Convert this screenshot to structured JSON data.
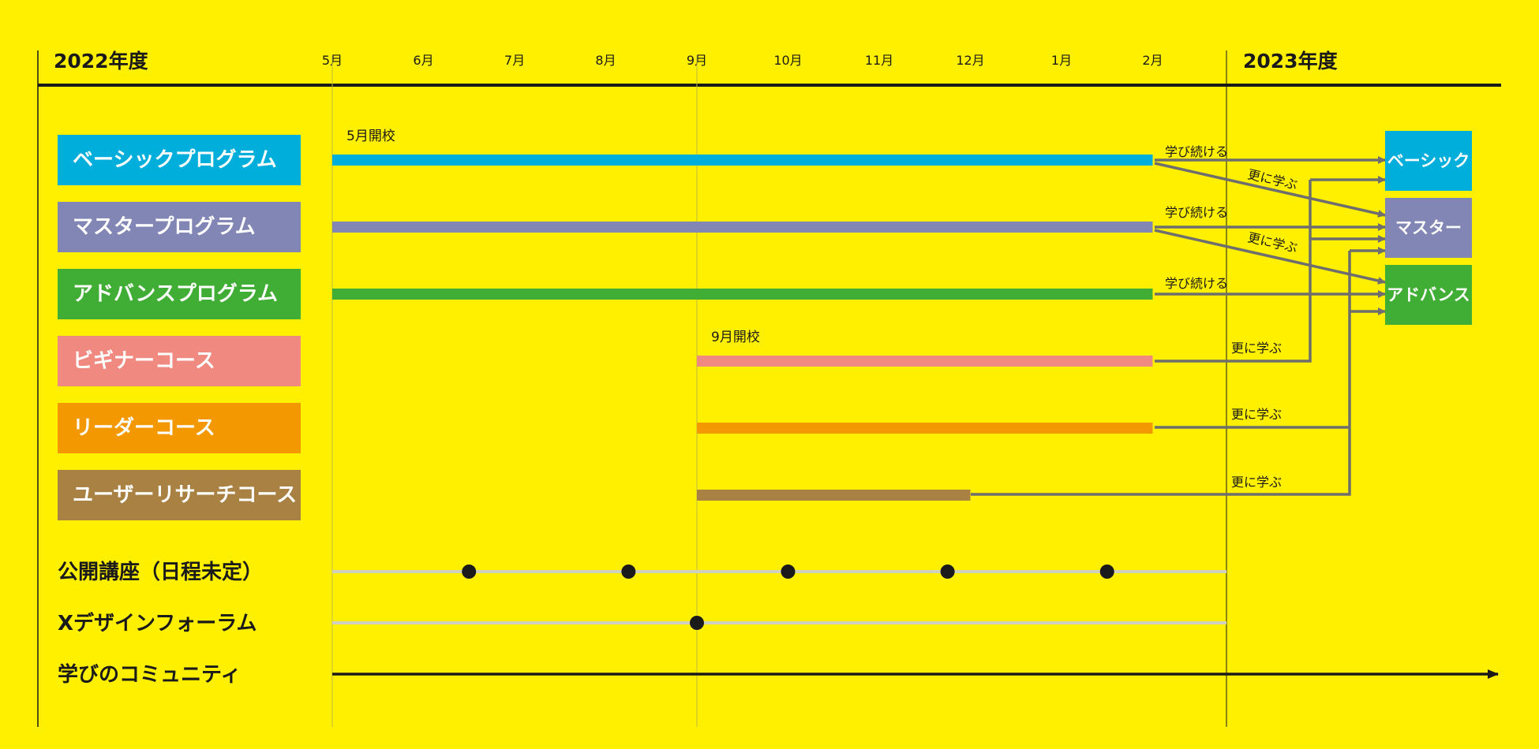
{
  "years": {
    "left": "2022年度",
    "right": "2023年度"
  },
  "months": [
    "5月",
    "6月",
    "7月",
    "8月",
    "9月",
    "10月",
    "11月",
    "12月",
    "1月",
    "2月"
  ],
  "colors": {
    "basic": "#00AEDB",
    "master": "#8286B4",
    "advance": "#40AE35",
    "beginner": "#F08A80",
    "leader": "#F39800",
    "research": "#A98143",
    "connector": "#6E6E6E",
    "event_line": "#D0D0C0"
  },
  "programs": [
    {
      "id": "basic",
      "label": "ベーシックプログラム",
      "color": "#00AEDB",
      "start": "5月",
      "end": "2月",
      "note": "5月開校"
    },
    {
      "id": "master",
      "label": "マスタープログラム",
      "color": "#8286B4",
      "start": "5月",
      "end": "2月",
      "note": ""
    },
    {
      "id": "advance",
      "label": "アドバンスプログラム",
      "color": "#40AE35",
      "start": "5月",
      "end": "2月",
      "note": ""
    },
    {
      "id": "beginner",
      "label": "ビギナーコース",
      "color": "#F08A80",
      "start": "9月",
      "end": "2月",
      "note": "9月開校"
    },
    {
      "id": "leader",
      "label": "リーダーコース",
      "color": "#F39800",
      "start": "9月",
      "end": "2月",
      "note": ""
    },
    {
      "id": "research",
      "label": "ユーザーリサーチコース",
      "color": "#A98143",
      "start": "9月",
      "end": "12月",
      "note": ""
    }
  ],
  "destinations": [
    {
      "id": "basic",
      "label": "ベーシック",
      "color": "#00AEDB"
    },
    {
      "id": "master",
      "label": "マスター",
      "color": "#8286B4"
    },
    {
      "id": "advance",
      "label": "アドバンス",
      "color": "#40AE35"
    }
  ],
  "flow_labels": {
    "continue": "学び続ける",
    "further": "更に学ぶ"
  },
  "events": [
    {
      "label": "公開講座（日程未定）",
      "markers": [
        6.5,
        8.25,
        10.0,
        11.75,
        13.5
      ]
    },
    {
      "label": "Xデザインフォーラム",
      "markers": [
        9
      ]
    },
    {
      "label": "学びのコミュニティ",
      "markers": []
    }
  ]
}
